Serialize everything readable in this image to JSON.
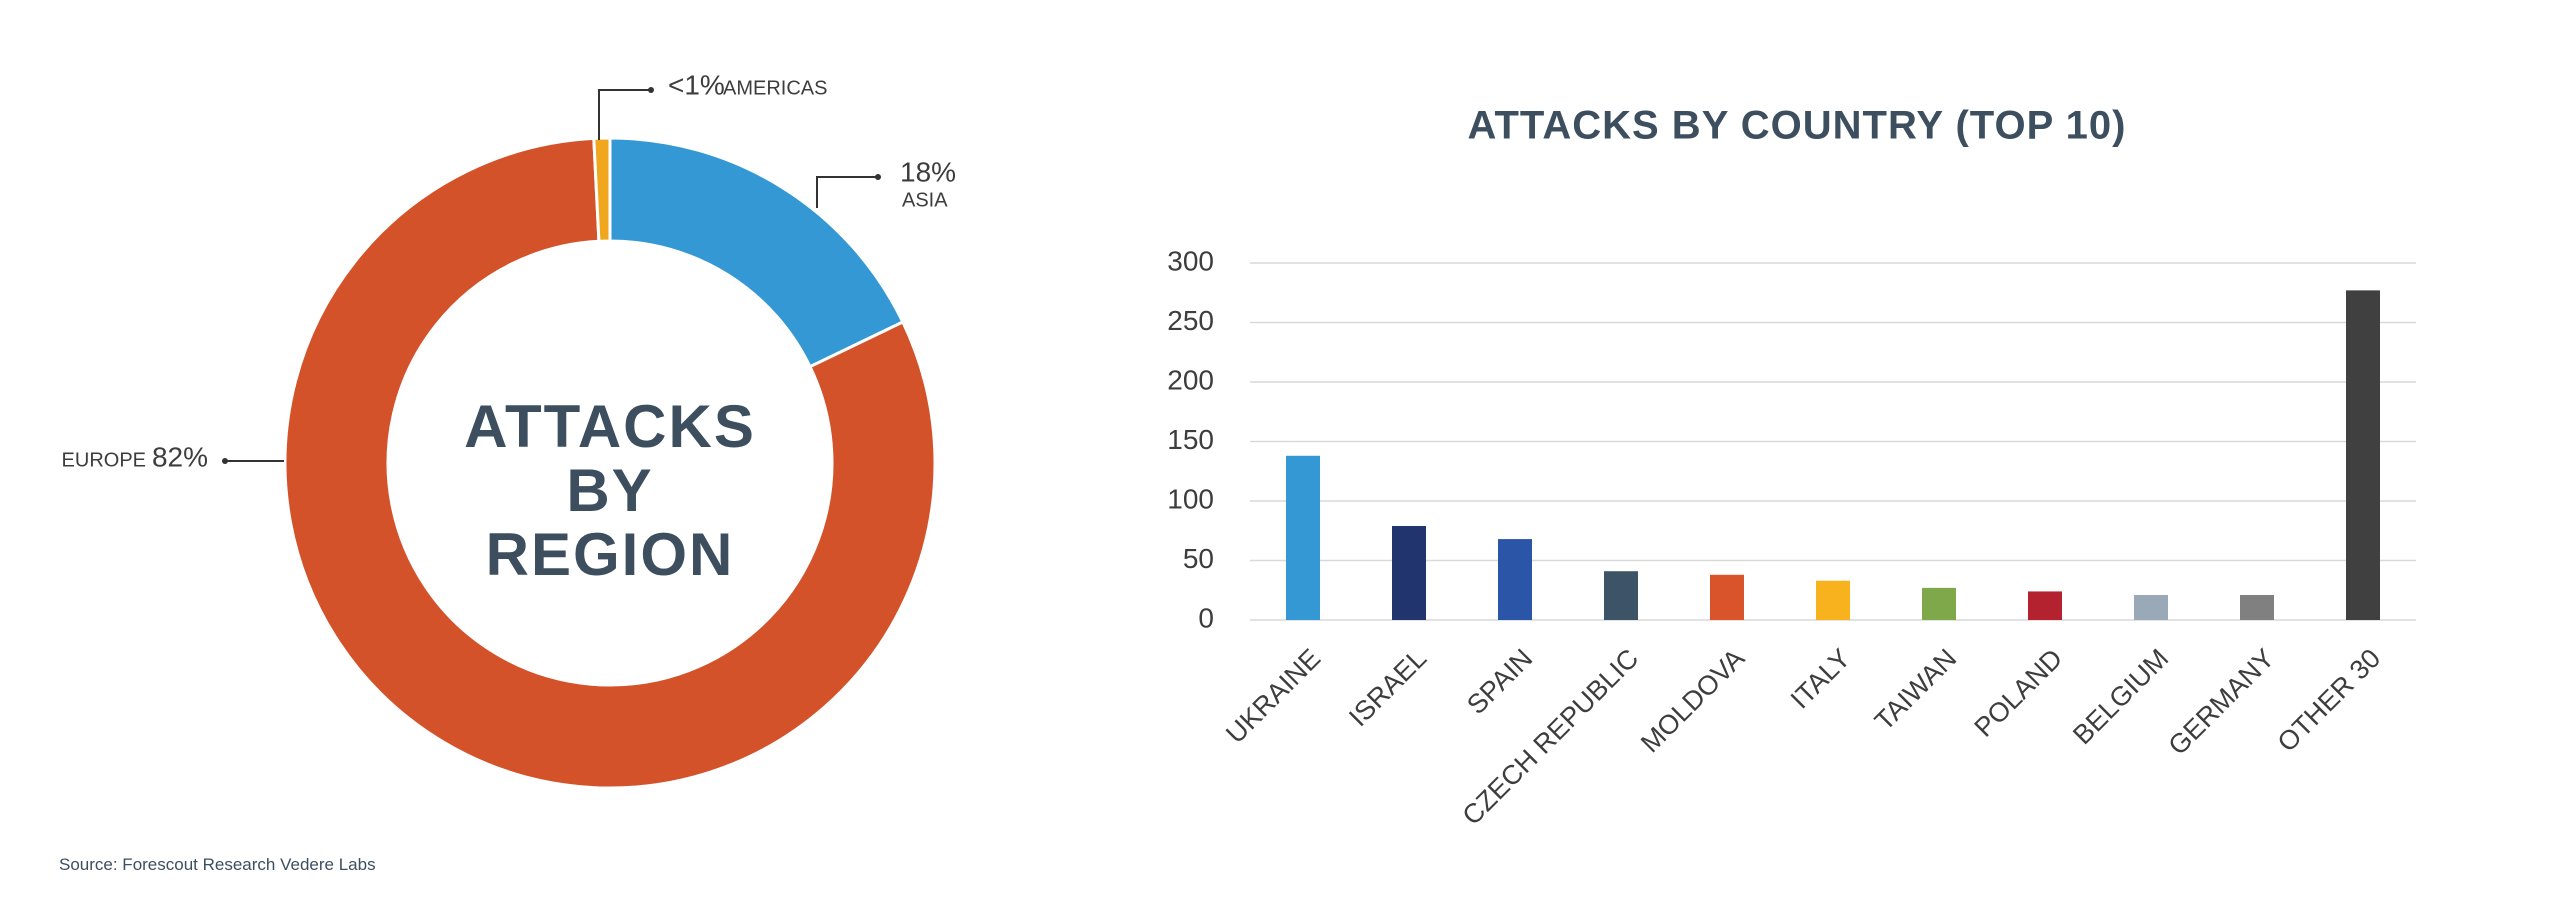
{
  "chart_data": [
    {
      "type": "pie",
      "donut": true,
      "title": "ATTACKS BY REGION",
      "categories": [
        "ASIA",
        "EUROPE",
        "AMERICAS"
      ],
      "values": [
        18,
        82,
        0.8
      ],
      "value_labels": [
        "18%",
        "82%",
        "<1%"
      ],
      "colors": [
        "#3498d4",
        "#d4522a",
        "#f0a71e"
      ]
    },
    {
      "type": "bar",
      "title": "ATTACKS BY COUNTRY (TOP 10)",
      "categories": [
        "UKRAINE",
        "ISRAEL",
        "SPAIN",
        "CZECH REPUBLIC",
        "MOLDOVA",
        "ITALY",
        "TAIWAN",
        "POLAND",
        "BELGIUM",
        "GERMANY",
        "OTHER 30"
      ],
      "values": [
        138,
        79,
        68,
        41,
        38,
        33,
        27,
        24,
        21,
        21,
        277
      ],
      "colors": [
        "#3498d4",
        "#22346e",
        "#2b56a8",
        "#3d5366",
        "#d9542a",
        "#f7b21e",
        "#7fa84a",
        "#b3222e",
        "#9aa9b7",
        "#808080",
        "#404040"
      ],
      "ylim": [
        0,
        300
      ],
      "yticks": [
        0,
        50,
        100,
        150,
        200,
        250,
        300
      ],
      "grid": true
    }
  ],
  "source": "Source: Forescout Research Vedere Labs"
}
